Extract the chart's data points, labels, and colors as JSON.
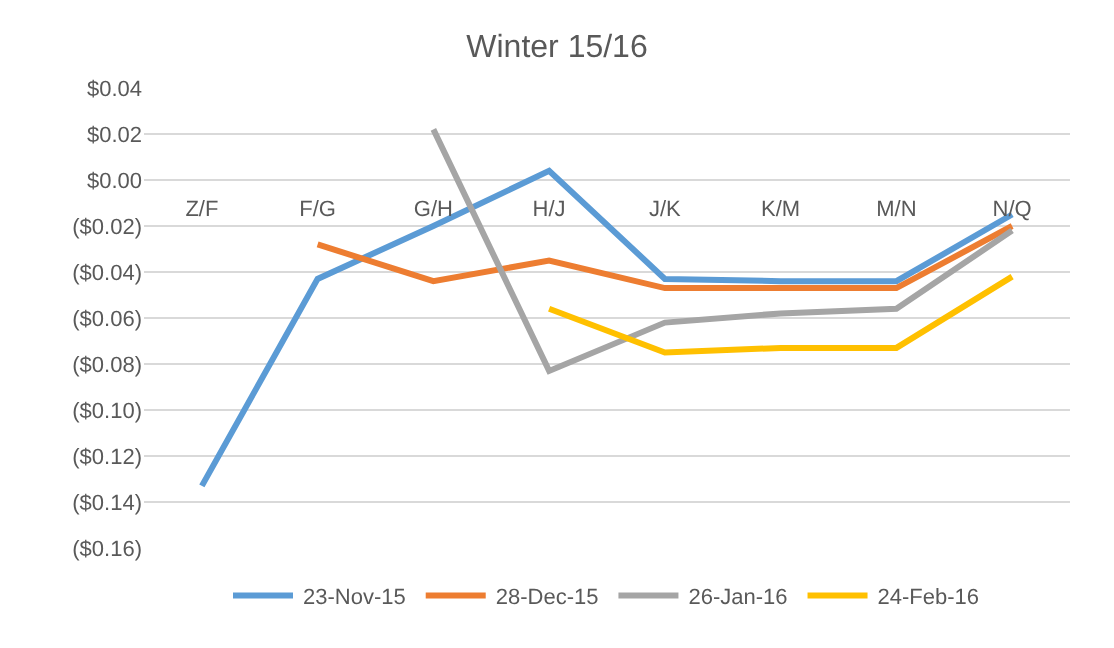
{
  "chart_data": {
    "type": "line",
    "title": "Winter 15/16",
    "categories": [
      "Z/F",
      "F/G",
      "G/H",
      "H/J",
      "J/K",
      "K/M",
      "M/N",
      "N/Q"
    ],
    "series": [
      {
        "name": "23-Nov-15",
        "color": "#5b9bd5",
        "values": [
          -0.133,
          -0.043,
          -0.02,
          0.004,
          -0.043,
          -0.044,
          -0.044,
          -0.015
        ]
      },
      {
        "name": "28-Dec-15",
        "color": "#ed7d31",
        "values": [
          null,
          -0.028,
          -0.044,
          -0.035,
          -0.047,
          -0.047,
          -0.047,
          -0.02
        ]
      },
      {
        "name": "26-Jan-16",
        "color": "#a5a5a5",
        "values": [
          null,
          null,
          0.022,
          -0.083,
          -0.062,
          -0.058,
          -0.056,
          -0.022
        ]
      },
      {
        "name": "24-Feb-16",
        "color": "#ffc000",
        "values": [
          null,
          null,
          null,
          -0.056,
          -0.075,
          -0.073,
          -0.073,
          -0.042
        ]
      }
    ],
    "ylim": [
      -0.16,
      0.04
    ],
    "yticks": [
      {
        "value": -0.16,
        "label": "($0.16)"
      },
      {
        "value": -0.14,
        "label": "($0.14)"
      },
      {
        "value": -0.12,
        "label": "($0.12)"
      },
      {
        "value": -0.1,
        "label": "($0.10)"
      },
      {
        "value": -0.08,
        "label": "($0.08)"
      },
      {
        "value": -0.06,
        "label": "($0.06)"
      },
      {
        "value": -0.04,
        "label": "($0.04)"
      },
      {
        "value": -0.02,
        "label": "($0.02)"
      },
      {
        "value": 0,
        "label": "$0.00"
      },
      {
        "value": 0.02,
        "label": "$0.02"
      },
      {
        "value": 0.04,
        "label": "$0.04"
      }
    ],
    "grid": "y",
    "legend": "bottom",
    "marker": "none",
    "line_style": "solid"
  }
}
